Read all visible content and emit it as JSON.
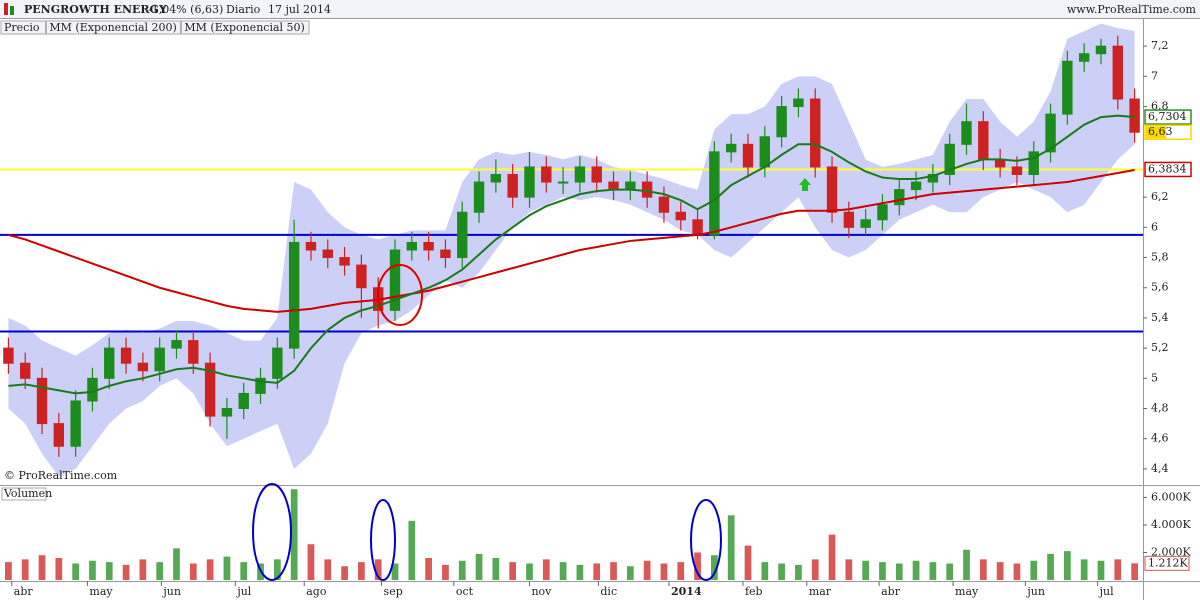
{
  "header": {
    "symbol": "PENGROWTH ENERGY",
    "change": "-1,04% (6,63)",
    "period": "Diario",
    "date": "17 jul 2014",
    "site": "www.ProRealTime.com",
    "copyright": "© ProRealTime.com"
  },
  "chart_data": [
    {
      "type": "candlestick",
      "xlim": [
        0,
        68
      ],
      "ylim": [
        4.3,
        7.38
      ],
      "yticks": [
        {
          "value": 4.4,
          "label": "4,4"
        },
        {
          "value": 4.6,
          "label": "4,6"
        },
        {
          "value": 4.8,
          "label": "4,8"
        },
        5,
        {
          "value": 5.2,
          "label": "5,2"
        },
        {
          "value": 5.4,
          "label": "5,4"
        },
        {
          "value": 5.6,
          "label": "5,6"
        },
        {
          "value": 5.8,
          "label": "5,8"
        },
        6,
        {
          "value": 6.2,
          "label": "6,2"
        },
        {
          "value": 6.8,
          "label": "6,8"
        },
        7,
        {
          "value": 7.2,
          "label": "7,2"
        }
      ],
      "ohlc": {
        "name": "Precio",
        "up_color": "#1c8c1c",
        "down_color": "#cc2222",
        "open": [
          5.2,
          5.1,
          5.0,
          4.7,
          4.55,
          4.85,
          5.0,
          5.2,
          5.1,
          5.05,
          5.2,
          5.25,
          5.1,
          4.75,
          4.8,
          4.9,
          5.0,
          5.2,
          5.9,
          5.85,
          5.8,
          5.75,
          5.6,
          5.45,
          5.85,
          5.9,
          5.85,
          5.8,
          6.1,
          6.3,
          6.35,
          6.2,
          6.4,
          6.3,
          6.3,
          6.4,
          6.3,
          6.25,
          6.3,
          6.2,
          6.1,
          6.05,
          5.95,
          6.5,
          6.55,
          6.4,
          6.6,
          6.8,
          6.85,
          6.4,
          6.1,
          6.0,
          6.05,
          6.15,
          6.25,
          6.3,
          6.35,
          6.55,
          6.7,
          6.45,
          6.4,
          6.35,
          6.5,
          6.75,
          7.1,
          7.15,
          7.2,
          6.85
        ],
        "high": [
          5.27,
          5.17,
          5.07,
          4.77,
          4.92,
          5.07,
          5.27,
          5.27,
          5.17,
          5.27,
          5.32,
          5.32,
          5.17,
          4.87,
          4.97,
          5.07,
          5.27,
          6.05,
          5.97,
          5.92,
          5.87,
          5.82,
          5.67,
          5.92,
          5.97,
          5.97,
          5.92,
          6.17,
          6.37,
          6.45,
          6.42,
          6.5,
          6.47,
          6.4,
          6.47,
          6.47,
          6.37,
          6.37,
          6.37,
          6.27,
          6.17,
          6.12,
          6.57,
          6.62,
          6.62,
          6.67,
          6.87,
          6.92,
          6.92,
          6.47,
          6.17,
          6.12,
          6.22,
          6.32,
          6.37,
          6.42,
          6.62,
          6.82,
          6.77,
          6.52,
          6.47,
          6.57,
          6.82,
          7.17,
          7.22,
          7.25,
          7.27,
          6.92
        ],
        "low": [
          5.03,
          4.93,
          4.63,
          4.48,
          4.48,
          4.78,
          4.93,
          5.03,
          4.98,
          4.98,
          5.13,
          5.03,
          4.68,
          4.6,
          4.73,
          4.83,
          4.93,
          5.13,
          5.78,
          5.73,
          5.68,
          5.4,
          5.33,
          5.38,
          5.78,
          5.78,
          5.73,
          5.73,
          6.03,
          6.23,
          6.13,
          6.13,
          6.23,
          6.22,
          6.23,
          6.23,
          6.18,
          6.18,
          6.13,
          6.03,
          5.98,
          5.92,
          5.92,
          6.43,
          6.33,
          6.33,
          6.53,
          6.73,
          6.33,
          6.03,
          5.93,
          5.95,
          5.98,
          6.08,
          6.18,
          6.23,
          6.28,
          6.48,
          6.38,
          6.33,
          6.28,
          6.28,
          6.43,
          6.68,
          7.03,
          7.08,
          6.78,
          6.56
        ],
        "close": [
          5.1,
          5.0,
          4.7,
          4.55,
          4.85,
          5.0,
          5.2,
          5.1,
          5.05,
          5.2,
          5.25,
          5.1,
          4.75,
          4.8,
          4.9,
          5.0,
          5.2,
          5.9,
          5.85,
          5.8,
          5.75,
          5.6,
          5.45,
          5.85,
          5.9,
          5.85,
          5.8,
          6.1,
          6.3,
          6.35,
          6.2,
          6.4,
          6.3,
          6.3,
          6.4,
          6.3,
          6.25,
          6.3,
          6.2,
          6.1,
          6.05,
          5.95,
          6.5,
          6.55,
          6.4,
          6.6,
          6.8,
          6.85,
          6.4,
          6.1,
          6.0,
          6.05,
          6.15,
          6.25,
          6.3,
          6.35,
          6.55,
          6.7,
          6.45,
          6.4,
          6.35,
          6.5,
          6.75,
          7.1,
          7.15,
          7.2,
          6.85,
          6.63
        ]
      },
      "bands": {
        "color": "#aab0f2",
        "upper": [
          5.4,
          5.35,
          5.25,
          5.2,
          5.15,
          5.22,
          5.3,
          5.32,
          5.3,
          5.33,
          5.38,
          5.38,
          5.35,
          5.3,
          5.25,
          5.25,
          5.4,
          6.3,
          6.25,
          6.1,
          6.0,
          5.95,
          5.92,
          5.95,
          5.98,
          5.98,
          5.98,
          6.3,
          6.45,
          6.5,
          6.48,
          6.5,
          6.48,
          6.45,
          6.48,
          6.45,
          6.4,
          6.38,
          6.35,
          6.32,
          6.28,
          6.25,
          6.65,
          6.75,
          6.75,
          6.8,
          6.95,
          7.0,
          7.0,
          6.95,
          6.7,
          6.45,
          6.4,
          6.42,
          6.45,
          6.48,
          6.7,
          6.85,
          6.85,
          6.7,
          6.6,
          6.7,
          6.9,
          7.25,
          7.3,
          7.35,
          7.32,
          7.3
        ],
        "lower": [
          4.8,
          4.7,
          4.5,
          4.35,
          4.4,
          4.55,
          4.7,
          4.8,
          4.85,
          4.95,
          5.0,
          4.9,
          4.7,
          4.55,
          4.6,
          4.65,
          4.7,
          4.4,
          4.5,
          4.7,
          5.1,
          5.3,
          5.35,
          5.38,
          5.45,
          5.55,
          5.65,
          5.6,
          5.7,
          5.85,
          6.0,
          6.1,
          6.15,
          6.2,
          6.18,
          6.2,
          6.18,
          6.15,
          6.1,
          6.05,
          5.98,
          5.95,
          5.85,
          5.8,
          5.9,
          6.0,
          6.1,
          6.2,
          6.0,
          5.85,
          5.8,
          5.85,
          5.95,
          6.05,
          6.1,
          6.15,
          6.1,
          6.1,
          6.2,
          6.25,
          6.3,
          6.25,
          6.2,
          6.1,
          6.15,
          6.3,
          6.45,
          6.55
        ]
      },
      "series": [
        {
          "name": "MM (Exponencial 200)",
          "color": "#cc0000",
          "values": [
            5.95,
            5.92,
            5.88,
            5.84,
            5.8,
            5.76,
            5.72,
            5.68,
            5.64,
            5.6,
            5.57,
            5.54,
            5.51,
            5.48,
            5.46,
            5.45,
            5.44,
            5.45,
            5.46,
            5.48,
            5.5,
            5.51,
            5.52,
            5.54,
            5.56,
            5.58,
            5.61,
            5.64,
            5.67,
            5.7,
            5.73,
            5.76,
            5.79,
            5.82,
            5.85,
            5.87,
            5.89,
            5.91,
            5.92,
            5.93,
            5.94,
            5.95,
            5.97,
            6.0,
            6.03,
            6.06,
            6.09,
            6.11,
            6.11,
            6.11,
            6.12,
            6.14,
            6.16,
            6.18,
            6.2,
            6.22,
            6.23,
            6.24,
            6.25,
            6.26,
            6.27,
            6.28,
            6.29,
            6.3,
            6.32,
            6.34,
            6.36,
            6.38
          ]
        },
        {
          "name": "MM (Exponencial 50)",
          "color": "#1a7a1a",
          "values": [
            4.95,
            4.96,
            4.94,
            4.92,
            4.9,
            4.91,
            4.95,
            4.98,
            5.0,
            5.03,
            5.06,
            5.07,
            5.05,
            5.02,
            5.0,
            4.98,
            4.97,
            5.05,
            5.2,
            5.32,
            5.4,
            5.45,
            5.48,
            5.52,
            5.56,
            5.6,
            5.65,
            5.72,
            5.82,
            5.92,
            6.0,
            6.08,
            6.14,
            6.18,
            6.22,
            6.24,
            6.25,
            6.25,
            6.24,
            6.22,
            6.18,
            6.12,
            6.18,
            6.28,
            6.34,
            6.4,
            6.48,
            6.55,
            6.55,
            6.5,
            6.43,
            6.37,
            6.33,
            6.32,
            6.32,
            6.34,
            6.38,
            6.42,
            6.45,
            6.45,
            6.44,
            6.46,
            6.52,
            6.6,
            6.68,
            6.73,
            6.74,
            6.73
          ]
        }
      ],
      "hlines": [
        {
          "value": 6.3834,
          "color": "#ffff33"
        },
        {
          "value": 5.95,
          "color": "#0000cc"
        },
        {
          "value": 5.31,
          "color": "#0000cc"
        }
      ],
      "markers": [
        {
          "value": 6.7304,
          "label": "6,7304",
          "color": "#2e8b2e"
        },
        {
          "value": 6.63,
          "label": "6,63",
          "color": "#ffd700"
        },
        {
          "value": 6.3834,
          "label": "6,3834",
          "color": "#cc0000"
        }
      ]
    },
    {
      "type": "bar",
      "title": "Volumen",
      "xlim": [
        0,
        68
      ],
      "ylim": [
        0,
        6760
      ],
      "yticks": [
        {
          "value": 2000,
          "label": "2.000K"
        },
        {
          "value": 4000,
          "label": "4.000K"
        },
        {
          "value": 6000,
          "label": "6.000K"
        }
      ],
      "xticks": [
        {
          "value": 0.7,
          "label": "abr"
        },
        {
          "value": 5.2,
          "label": "may"
        },
        {
          "value": 9.6,
          "label": "jun"
        },
        {
          "value": 14.0,
          "label": "jul"
        },
        {
          "value": 18.1,
          "label": "ago"
        },
        {
          "value": 22.7,
          "label": "sep"
        },
        {
          "value": 27.0,
          "label": "oct"
        },
        {
          "value": 31.5,
          "label": "nov"
        },
        {
          "value": 35.6,
          "label": "dic"
        },
        {
          "value": 39.8,
          "label": "2014"
        },
        {
          "value": 44.2,
          "label": "feb"
        },
        {
          "value": 48.0,
          "label": "mar"
        },
        {
          "value": 52.3,
          "label": "abr"
        },
        {
          "value": 56.7,
          "label": "may"
        },
        {
          "value": 61.0,
          "label": "jun"
        },
        {
          "value": 65.3,
          "label": "jul"
        }
      ],
      "values": [
        1300,
        1500,
        1800,
        1600,
        1200,
        1400,
        1300,
        1100,
        1500,
        1300,
        2300,
        1200,
        1500,
        1700,
        1300,
        1200,
        1500,
        6600,
        2600,
        1500,
        1000,
        1300,
        1500,
        1200,
        4300,
        1600,
        1100,
        1400,
        1900,
        1600,
        1300,
        1200,
        1500,
        1300,
        1100,
        1200,
        1300,
        1000,
        1400,
        1200,
        1300,
        2000,
        1800,
        4700,
        2500,
        1300,
        1200,
        1100,
        1500,
        3300,
        1500,
        1400,
        1300,
        1200,
        1400,
        1300,
        1200,
        2200,
        1500,
        1300,
        1200,
        1400,
        1900,
        2100,
        1500,
        1400,
        1500,
        1212
      ],
      "last_label": {
        "value": 1212,
        "label": "1.212K"
      }
    }
  ]
}
